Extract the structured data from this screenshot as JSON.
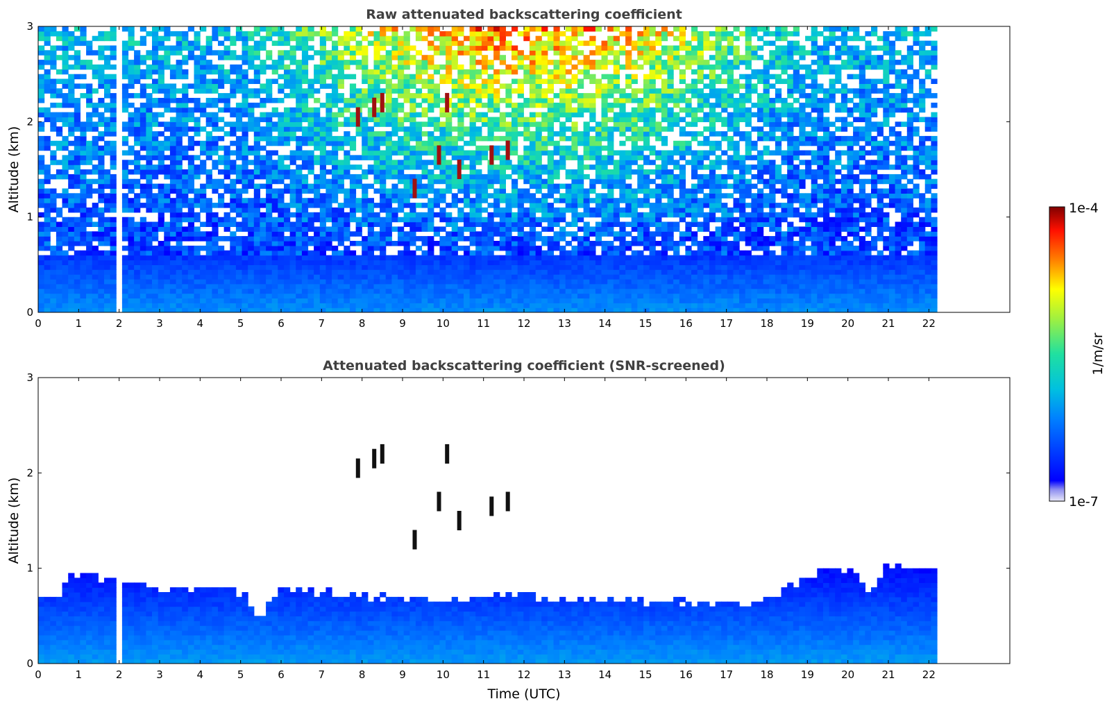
{
  "chart_data": [
    {
      "type": "heatmap",
      "title": "Raw attenuated backscattering coefficient",
      "xlabel": "",
      "ylabel": "Altitude (km)",
      "xlim": [
        0,
        24
      ],
      "ylim": [
        0,
        3
      ],
      "xticks": [
        0,
        1,
        2,
        3,
        4,
        5,
        6,
        7,
        8,
        9,
        10,
        11,
        12,
        13,
        14,
        15,
        16,
        17,
        18,
        19,
        20,
        21,
        22
      ],
      "yticks": [
        0,
        1,
        2,
        3
      ],
      "data_extent_hours": 22.2,
      "data_gaps_hours": [
        [
          1.95,
          2.1
        ],
        [
          2.22,
          2.26
        ],
        [
          2.35,
          2.38
        ],
        [
          2.83,
          2.85
        ]
      ],
      "description_layers": [
        {
          "from_km": 0.0,
          "to_km": 0.6,
          "level": "low (blue)"
        },
        {
          "from_km": 0.6,
          "to_km": 3.0,
          "level": "noisy, increasing toward green/yellow in daytime"
        }
      ],
      "cloud_features": [
        {
          "time_h": 7.9,
          "alt_km": 2.05
        },
        {
          "time_h": 8.3,
          "alt_km": 2.15
        },
        {
          "time_h": 8.5,
          "alt_km": 2.2
        },
        {
          "time_h": 9.9,
          "alt_km": 1.65
        },
        {
          "time_h": 10.1,
          "alt_km": 2.2
        },
        {
          "time_h": 10.4,
          "alt_km": 1.5
        },
        {
          "time_h": 11.2,
          "alt_km": 1.65
        },
        {
          "time_h": 11.6,
          "alt_km": 1.7
        },
        {
          "time_h": 9.3,
          "alt_km": 1.3
        }
      ]
    },
    {
      "type": "heatmap",
      "title": "Attenuated backscattering coefficient (SNR-screened)",
      "xlabel": "Time (UTC)",
      "ylabel": "Altitude (km)",
      "xlim": [
        0,
        24
      ],
      "ylim": [
        0,
        3
      ],
      "xticks": [
        0,
        1,
        2,
        3,
        4,
        5,
        6,
        7,
        8,
        9,
        10,
        11,
        12,
        13,
        14,
        15,
        16,
        17,
        18,
        19,
        20,
        21,
        22
      ],
      "yticks": [
        0,
        1,
        2,
        3
      ],
      "data_extent_hours": 22.2,
      "data_gaps_hours": [
        [
          1.95,
          2.1
        ],
        [
          2.22,
          2.26
        ],
        [
          2.35,
          2.38
        ],
        [
          2.83,
          2.85
        ]
      ],
      "layer_top_km": [
        [
          0.0,
          0.75
        ],
        [
          0.5,
          0.7
        ],
        [
          0.8,
          0.95
        ],
        [
          1.5,
          0.9
        ],
        [
          2.5,
          0.85
        ],
        [
          3.0,
          0.75
        ],
        [
          4.0,
          0.8
        ],
        [
          5.0,
          0.75
        ],
        [
          5.5,
          0.5
        ],
        [
          6.0,
          0.8
        ],
        [
          7.0,
          0.75
        ],
        [
          8.0,
          0.7
        ],
        [
          9.0,
          0.7
        ],
        [
          10.0,
          0.65
        ],
        [
          11.0,
          0.7
        ],
        [
          12.0,
          0.75
        ],
        [
          13.0,
          0.65
        ],
        [
          14.0,
          0.7
        ],
        [
          15.0,
          0.65
        ],
        [
          16.0,
          0.65
        ],
        [
          17.0,
          0.65
        ],
        [
          17.5,
          0.6
        ],
        [
          18.0,
          0.7
        ],
        [
          18.5,
          0.8
        ],
        [
          19.0,
          0.9
        ],
        [
          19.5,
          1.0
        ],
        [
          20.0,
          1.0
        ],
        [
          20.6,
          0.75
        ],
        [
          21.0,
          1.05
        ],
        [
          21.5,
          1.0
        ],
        [
          22.2,
          1.0
        ]
      ],
      "cloud_features": [
        {
          "time_h": 7.9,
          "alt_km": 2.05
        },
        {
          "time_h": 8.3,
          "alt_km": 2.15
        },
        {
          "time_h": 8.5,
          "alt_km": 2.2
        },
        {
          "time_h": 9.9,
          "alt_km": 1.7
        },
        {
          "time_h": 10.1,
          "alt_km": 2.2
        },
        {
          "time_h": 10.4,
          "alt_km": 1.5
        },
        {
          "time_h": 11.2,
          "alt_km": 1.65
        },
        {
          "time_h": 11.6,
          "alt_km": 1.7
        },
        {
          "time_h": 9.3,
          "alt_km": 1.3
        }
      ]
    }
  ],
  "colorbar": {
    "label": "1/m/sr",
    "max_label": "1e-4",
    "min_label": "1e-7",
    "scale": "log",
    "range": [
      1e-07,
      0.0001
    ]
  },
  "colors": {
    "title": "#404040",
    "axis": "#000000"
  }
}
